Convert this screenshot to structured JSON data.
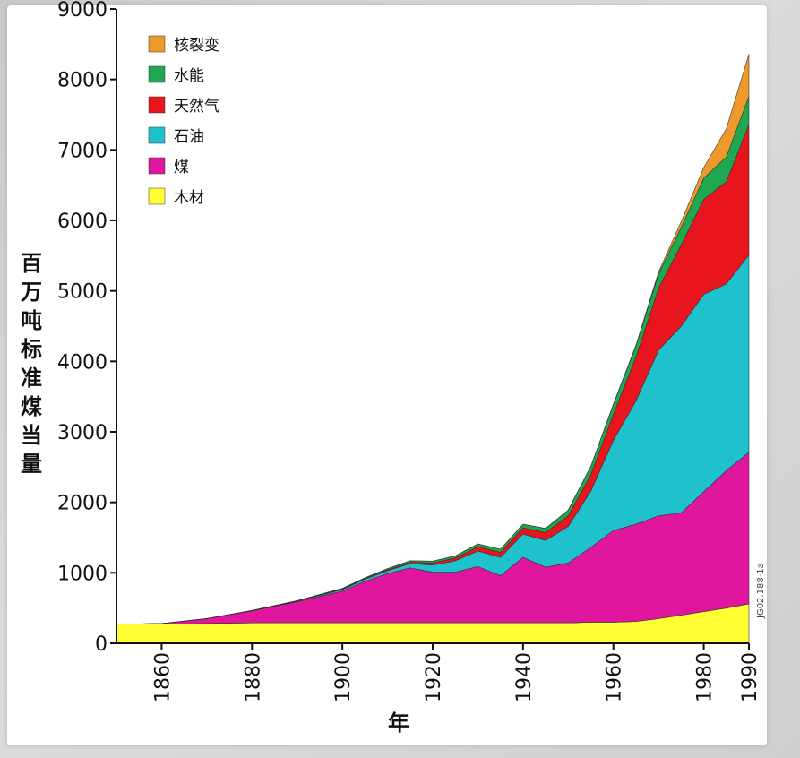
{
  "chart_data": {
    "type": "area",
    "stacked": true,
    "xlabel": "年",
    "ylabel": "百万吨标准煤当量",
    "ylim": [
      0,
      9000
    ],
    "xlim": [
      1850,
      1990
    ],
    "yticks": [
      "0",
      "1000",
      "2000",
      "3000",
      "4000",
      "5000",
      "6000",
      "7000",
      "8000",
      "9000"
    ],
    "xticks": [
      "1860",
      "1880",
      "1900",
      "1920",
      "1940",
      "1960",
      "1980",
      "1990"
    ],
    "legend_position": "top-left",
    "watermark": "JG02.188-1a",
    "x": [
      1850,
      1860,
      1870,
      1880,
      1890,
      1900,
      1905,
      1910,
      1915,
      1920,
      1925,
      1930,
      1935,
      1940,
      1945,
      1950,
      1955,
      1960,
      1965,
      1970,
      1975,
      1980,
      1985,
      1990
    ],
    "series": [
      {
        "name": "木材",
        "color": "#ffff33",
        "values": [
          270,
          270,
          280,
          290,
          290,
          290,
          290,
          290,
          290,
          290,
          290,
          290,
          290,
          290,
          290,
          290,
          300,
          300,
          310,
          350,
          400,
          450,
          500,
          560
        ]
      },
      {
        "name": "煤",
        "color": "#e0169e",
        "values": [
          0,
          10,
          70,
          170,
          300,
          450,
          590,
          700,
          780,
          720,
          720,
          800,
          670,
          930,
          790,
          850,
          1060,
          1300,
          1380,
          1460,
          1450,
          1700,
          1950,
          2150
        ]
      },
      {
        "name": "石油",
        "color": "#1fc2cc",
        "values": [
          0,
          0,
          0,
          5,
          10,
          20,
          30,
          40,
          60,
          100,
          160,
          220,
          260,
          330,
          380,
          520,
          800,
          1280,
          1750,
          2350,
          2650,
          2800,
          2650,
          2800
        ]
      },
      {
        "name": "天然气",
        "color": "#e8141e",
        "values": [
          0,
          0,
          0,
          2,
          5,
          10,
          10,
          15,
          20,
          30,
          40,
          60,
          70,
          90,
          110,
          150,
          230,
          370,
          620,
          880,
          1150,
          1350,
          1450,
          1850
        ]
      },
      {
        "name": "水能",
        "color": "#1fa84f",
        "values": [
          0,
          0,
          0,
          0,
          0,
          10,
          10,
          15,
          20,
          25,
          30,
          40,
          45,
          50,
          60,
          80,
          120,
          140,
          160,
          200,
          250,
          300,
          350,
          400
        ]
      },
      {
        "name": "核裂变",
        "color": "#ee9a2a",
        "values": [
          0,
          0,
          0,
          0,
          0,
          0,
          0,
          0,
          0,
          0,
          0,
          0,
          0,
          0,
          0,
          0,
          0,
          5,
          10,
          30,
          80,
          150,
          400,
          600
        ]
      }
    ]
  }
}
